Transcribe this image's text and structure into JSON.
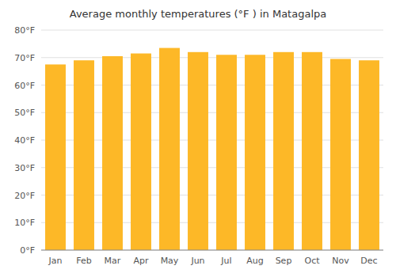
{
  "chart_data": {
    "type": "bar",
    "title": "Average monthly temperatures (°F ) in Matagalpa",
    "categories": [
      "Jan",
      "Feb",
      "Mar",
      "Apr",
      "May",
      "Jun",
      "Jul",
      "Aug",
      "Sep",
      "Oct",
      "Nov",
      "Dec"
    ],
    "values": [
      67.5,
      69.0,
      70.5,
      71.5,
      73.5,
      72.0,
      71.0,
      71.0,
      72.0,
      72.0,
      69.5,
      69.0
    ],
    "color": "#FDB827",
    "ylim": [
      0,
      80
    ],
    "yticks": [
      {
        "value": 0,
        "label": "0°F"
      },
      {
        "value": 10,
        "label": "10°F"
      },
      {
        "value": 20,
        "label": "20°F"
      },
      {
        "value": 30,
        "label": "30°F"
      },
      {
        "value": 40,
        "label": "40°F"
      },
      {
        "value": 50,
        "label": "50°F"
      },
      {
        "value": 60,
        "label": "60°F"
      },
      {
        "value": 70,
        "label": "70°F"
      },
      {
        "value": 80,
        "label": "80°F"
      }
    ],
    "grid": true
  }
}
